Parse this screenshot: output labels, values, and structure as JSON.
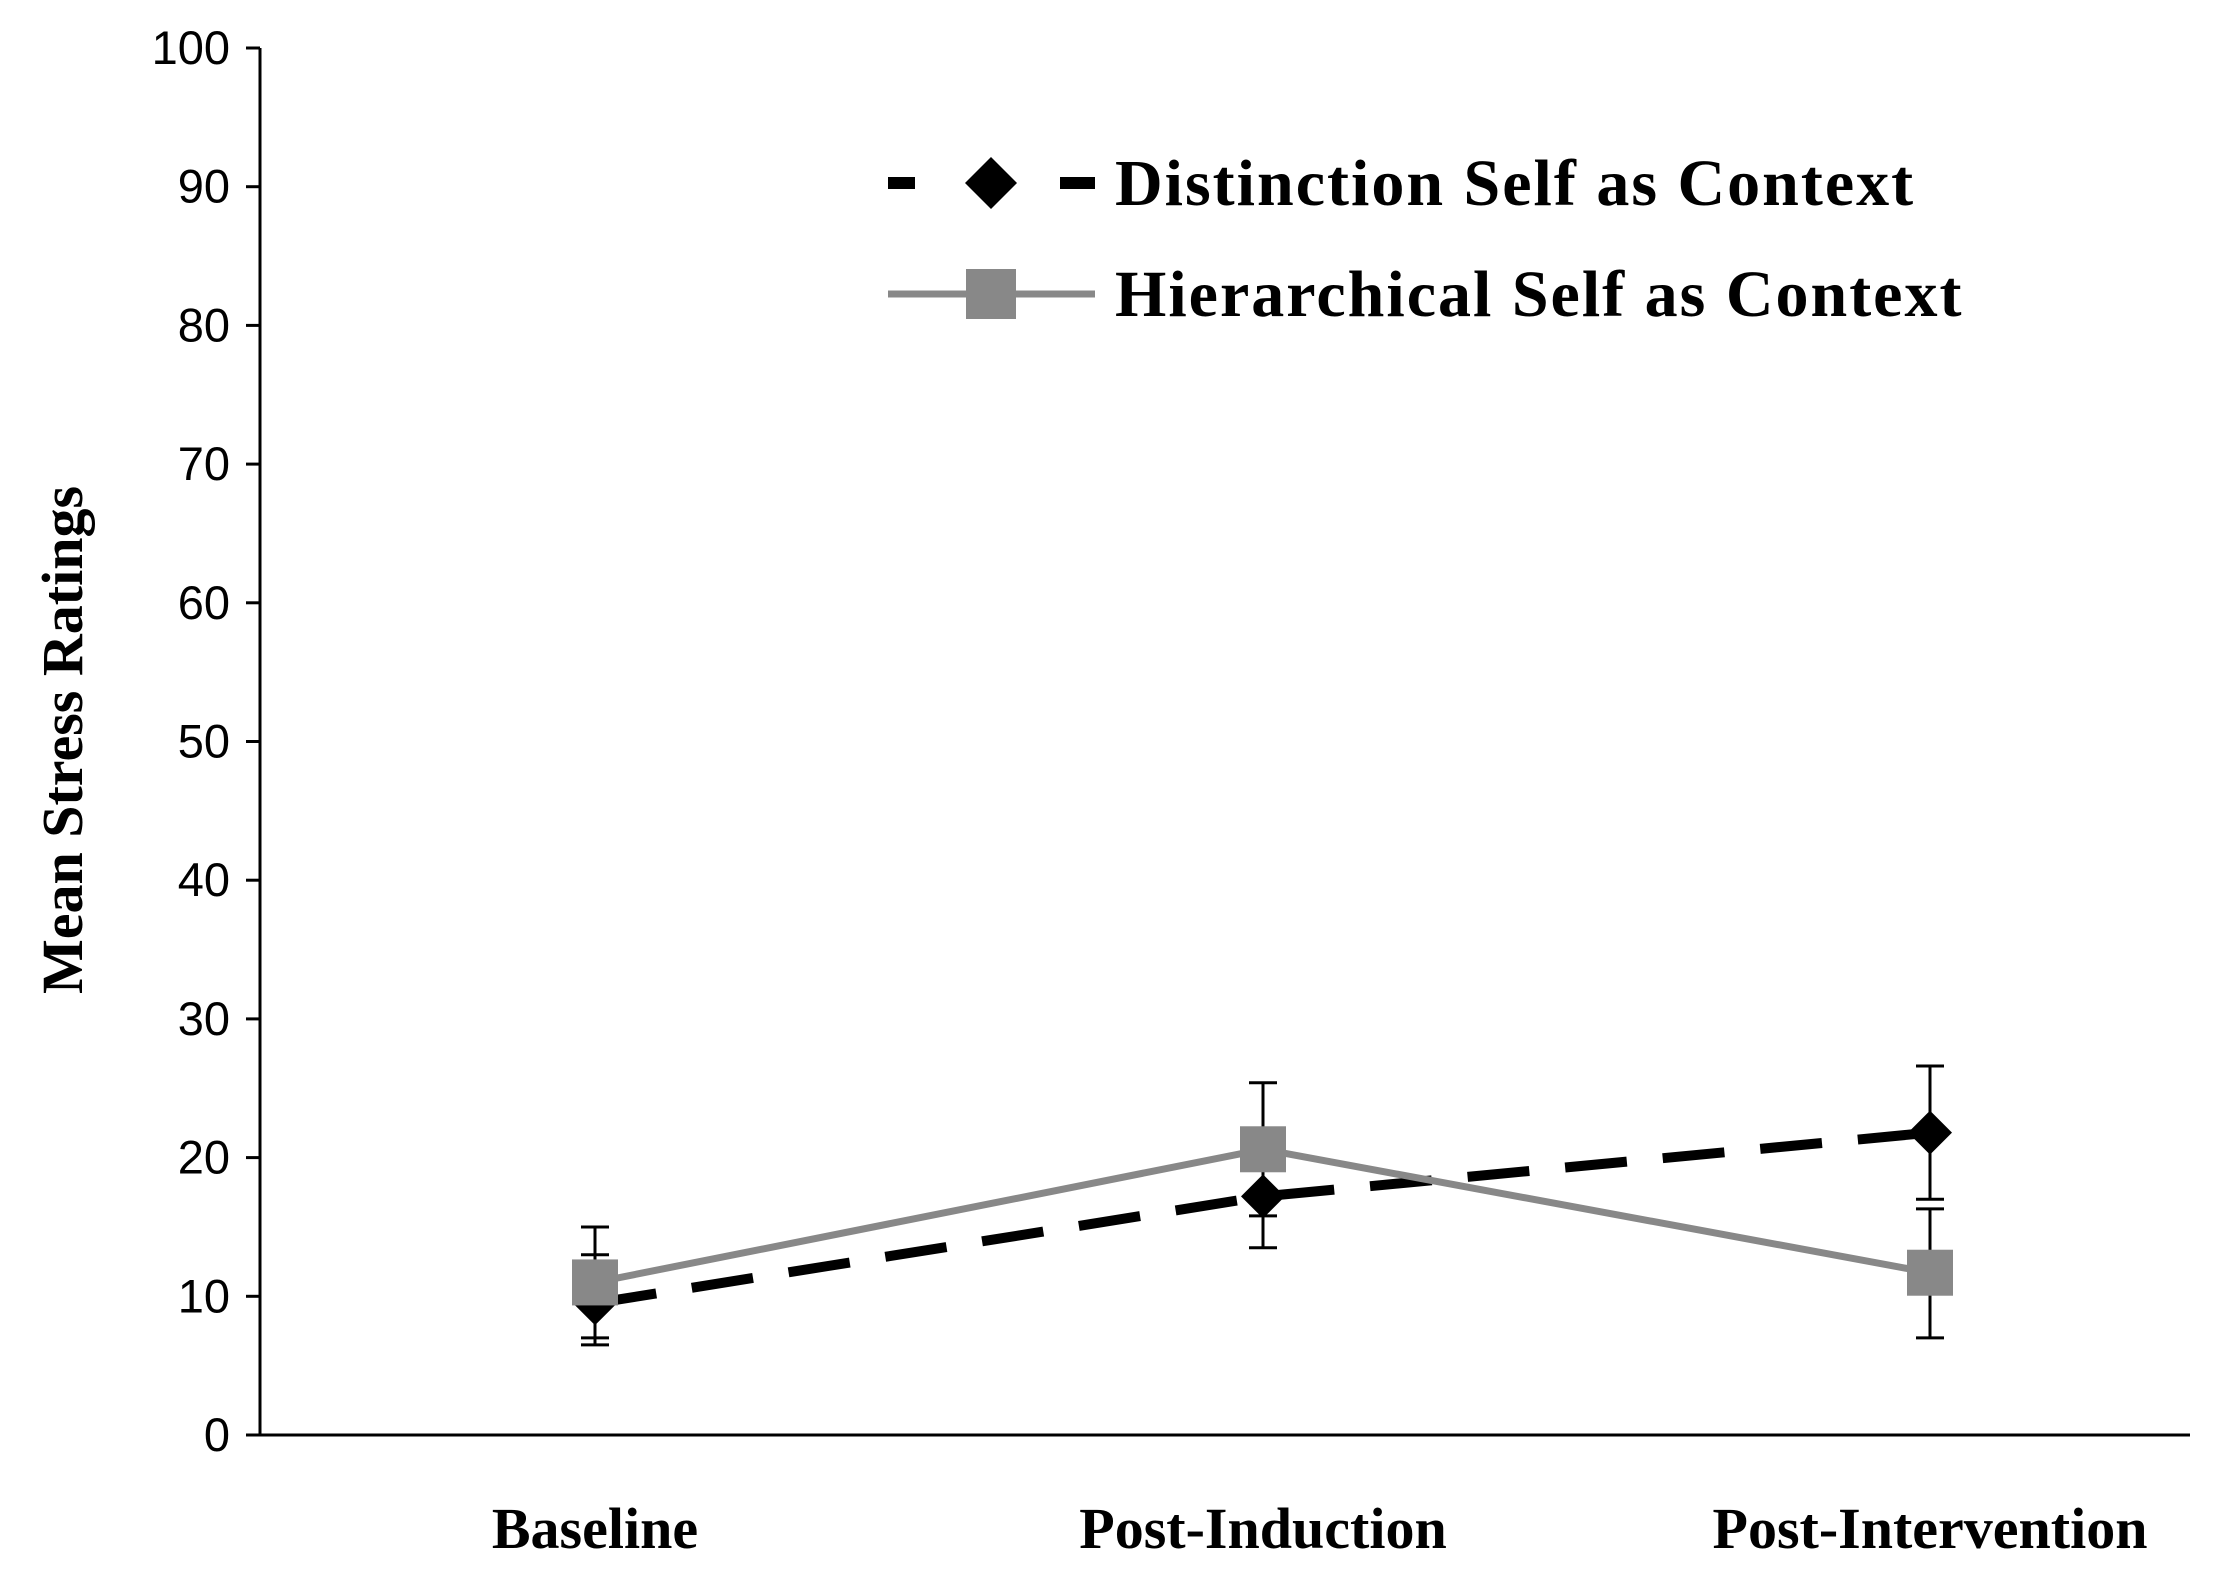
{
  "chart_data": {
    "type": "line",
    "title": "",
    "xlabel": "",
    "ylabel": "Mean Stress Ratings",
    "categories": [
      "Baseline",
      "Post-Induction",
      "Post-Intervention"
    ],
    "ylim": [
      0,
      100
    ],
    "yticks": [
      0,
      10,
      20,
      30,
      40,
      50,
      60,
      70,
      80,
      90,
      100
    ],
    "grid": false,
    "legend_position": "top-right",
    "series": [
      {
        "name": "Distinction Self as Context",
        "values": [
          9.5,
          17.2,
          21.8
        ],
        "error_low": [
          6.5,
          13.5,
          17.0
        ],
        "error_high": [
          13.0,
          21.0,
          26.6
        ],
        "color": "#000000",
        "line_style": "dashed",
        "marker": "diamond"
      },
      {
        "name": "Hierarchical Self as Context",
        "values": [
          11.0,
          20.6,
          11.7
        ],
        "error_low": [
          7.0,
          15.8,
          7.0
        ],
        "error_high": [
          15.0,
          25.4,
          16.3
        ],
        "color": "#888888",
        "line_style": "solid",
        "marker": "square"
      }
    ]
  }
}
